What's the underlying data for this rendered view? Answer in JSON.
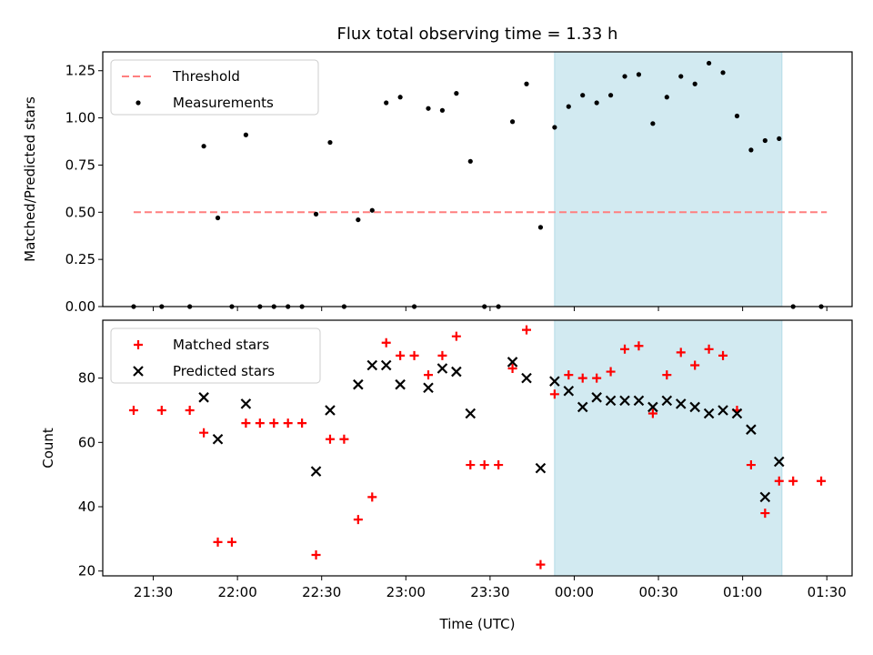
{
  "chart_data": {
    "type": "scatter",
    "title": "Flux total observing time = 1.33 h",
    "xlabel": "Time (UTC)",
    "x_tick_labels": [
      "21:30",
      "22:00",
      "22:30",
      "23:00",
      "23:30",
      "00:00",
      "00:30",
      "01:00",
      "01:30"
    ],
    "shaded_interval": {
      "start": "23:53",
      "end": "01:14",
      "color": "#add8e6"
    },
    "panels": [
      {
        "ylabel": "Matched/Predicted stars",
        "ylim": [
          0,
          1.35
        ],
        "y_ticks": [
          "0.00",
          "0.25",
          "0.50",
          "0.75",
          "1.00",
          "1.25"
        ],
        "legend": {
          "placement": "top-left",
          "entries": [
            "Threshold",
            "Measurements"
          ]
        },
        "series": [
          {
            "name": "Threshold",
            "kind": "dashed-line",
            "color": "#ff7f7f",
            "points": [
              [
                "21:23",
                0.5
              ],
              [
                "01:30",
                0.5
              ]
            ]
          },
          {
            "name": "Measurements",
            "kind": "dot",
            "color": "#000000",
            "points": [
              [
                "21:23",
                0.0
              ],
              [
                "21:33",
                0.0
              ],
              [
                "21:43",
                0.0
              ],
              [
                "21:48",
                0.85
              ],
              [
                "21:53",
                0.47
              ],
              [
                "21:58",
                0.0
              ],
              [
                "22:03",
                0.91
              ],
              [
                "22:08",
                0.0
              ],
              [
                "22:13",
                0.0
              ],
              [
                "22:18",
                0.0
              ],
              [
                "22:23",
                0.0
              ],
              [
                "22:28",
                0.49
              ],
              [
                "22:33",
                0.87
              ],
              [
                "22:38",
                0.0
              ],
              [
                "22:43",
                0.46
              ],
              [
                "22:48",
                0.51
              ],
              [
                "22:53",
                1.08
              ],
              [
                "22:58",
                1.11
              ],
              [
                "23:03",
                0.0
              ],
              [
                "23:08",
                1.05
              ],
              [
                "23:13",
                1.04
              ],
              [
                "23:18",
                1.13
              ],
              [
                "23:23",
                0.77
              ],
              [
                "23:28",
                0.0
              ],
              [
                "23:33",
                0.0
              ],
              [
                "23:38",
                0.98
              ],
              [
                "23:43",
                1.18
              ],
              [
                "23:48",
                0.42
              ],
              [
                "23:53",
                0.95
              ],
              [
                "23:58",
                1.06
              ],
              [
                "00:03",
                1.12
              ],
              [
                "00:08",
                1.08
              ],
              [
                "00:13",
                1.12
              ],
              [
                "00:18",
                1.22
              ],
              [
                "00:23",
                1.23
              ],
              [
                "00:28",
                0.97
              ],
              [
                "00:33",
                1.11
              ],
              [
                "00:38",
                1.22
              ],
              [
                "00:43",
                1.18
              ],
              [
                "00:48",
                1.29
              ],
              [
                "00:53",
                1.24
              ],
              [
                "00:58",
                1.01
              ],
              [
                "01:03",
                0.83
              ],
              [
                "01:08",
                0.88
              ],
              [
                "01:13",
                0.89
              ],
              [
                "01:18",
                0.0
              ],
              [
                "01:28",
                0.0
              ]
            ]
          }
        ]
      },
      {
        "ylabel": "Count",
        "ylim": [
          18.5,
          98
        ],
        "y_ticks": [
          "20",
          "40",
          "60",
          "80"
        ],
        "legend": {
          "placement": "top-left",
          "entries": [
            "Matched stars",
            "Predicted stars"
          ]
        },
        "series": [
          {
            "name": "Matched stars",
            "kind": "plus",
            "color": "#ff0000",
            "points": [
              [
                "21:23",
                70
              ],
              [
                "21:33",
                70
              ],
              [
                "21:43",
                70
              ],
              [
                "21:48",
                63
              ],
              [
                "21:53",
                29
              ],
              [
                "21:58",
                29
              ],
              [
                "22:03",
                66
              ],
              [
                "22:08",
                66
              ],
              [
                "22:13",
                66
              ],
              [
                "22:18",
                66
              ],
              [
                "22:23",
                66
              ],
              [
                "22:28",
                25
              ],
              [
                "22:33",
                61
              ],
              [
                "22:38",
                61
              ],
              [
                "22:43",
                36
              ],
              [
                "22:48",
                43
              ],
              [
                "22:53",
                91
              ],
              [
                "22:58",
                87
              ],
              [
                "23:03",
                87
              ],
              [
                "23:08",
                81
              ],
              [
                "23:13",
                87
              ],
              [
                "23:18",
                93
              ],
              [
                "23:23",
                53
              ],
              [
                "23:28",
                53
              ],
              [
                "23:33",
                53
              ],
              [
                "23:38",
                83
              ],
              [
                "23:43",
                95
              ],
              [
                "23:48",
                22
              ],
              [
                "23:53",
                75
              ],
              [
                "23:58",
                81
              ],
              [
                "00:03",
                80
              ],
              [
                "00:08",
                80
              ],
              [
                "00:13",
                82
              ],
              [
                "00:18",
                89
              ],
              [
                "00:23",
                90
              ],
              [
                "00:28",
                69
              ],
              [
                "00:33",
                81
              ],
              [
                "00:38",
                88
              ],
              [
                "00:43",
                84
              ],
              [
                "00:48",
                89
              ],
              [
                "00:53",
                87
              ],
              [
                "00:58",
                70
              ],
              [
                "01:03",
                53
              ],
              [
                "01:08",
                38
              ],
              [
                "01:13",
                48
              ],
              [
                "01:18",
                48
              ],
              [
                "01:28",
                48
              ]
            ]
          },
          {
            "name": "Predicted stars",
            "kind": "x",
            "color": "#000000",
            "points": [
              [
                "21:48",
                74
              ],
              [
                "21:53",
                61
              ],
              [
                "22:03",
                72
              ],
              [
                "22:28",
                51
              ],
              [
                "22:33",
                70
              ],
              [
                "22:43",
                78
              ],
              [
                "22:48",
                84
              ],
              [
                "22:53",
                84
              ],
              [
                "22:58",
                78
              ],
              [
                "23:08",
                77
              ],
              [
                "23:13",
                83
              ],
              [
                "23:18",
                82
              ],
              [
                "23:23",
                69
              ],
              [
                "23:38",
                85
              ],
              [
                "23:43",
                80
              ],
              [
                "23:48",
                52
              ],
              [
                "23:53",
                79
              ],
              [
                "23:58",
                76
              ],
              [
                "00:03",
                71
              ],
              [
                "00:08",
                74
              ],
              [
                "00:13",
                73
              ],
              [
                "00:18",
                73
              ],
              [
                "00:23",
                73
              ],
              [
                "00:28",
                71
              ],
              [
                "00:33",
                73
              ],
              [
                "00:38",
                72
              ],
              [
                "00:43",
                71
              ],
              [
                "00:48",
                69
              ],
              [
                "00:53",
                70
              ],
              [
                "00:58",
                69
              ],
              [
                "01:03",
                64
              ],
              [
                "01:08",
                43
              ],
              [
                "01:13",
                54
              ]
            ]
          }
        ]
      }
    ]
  }
}
